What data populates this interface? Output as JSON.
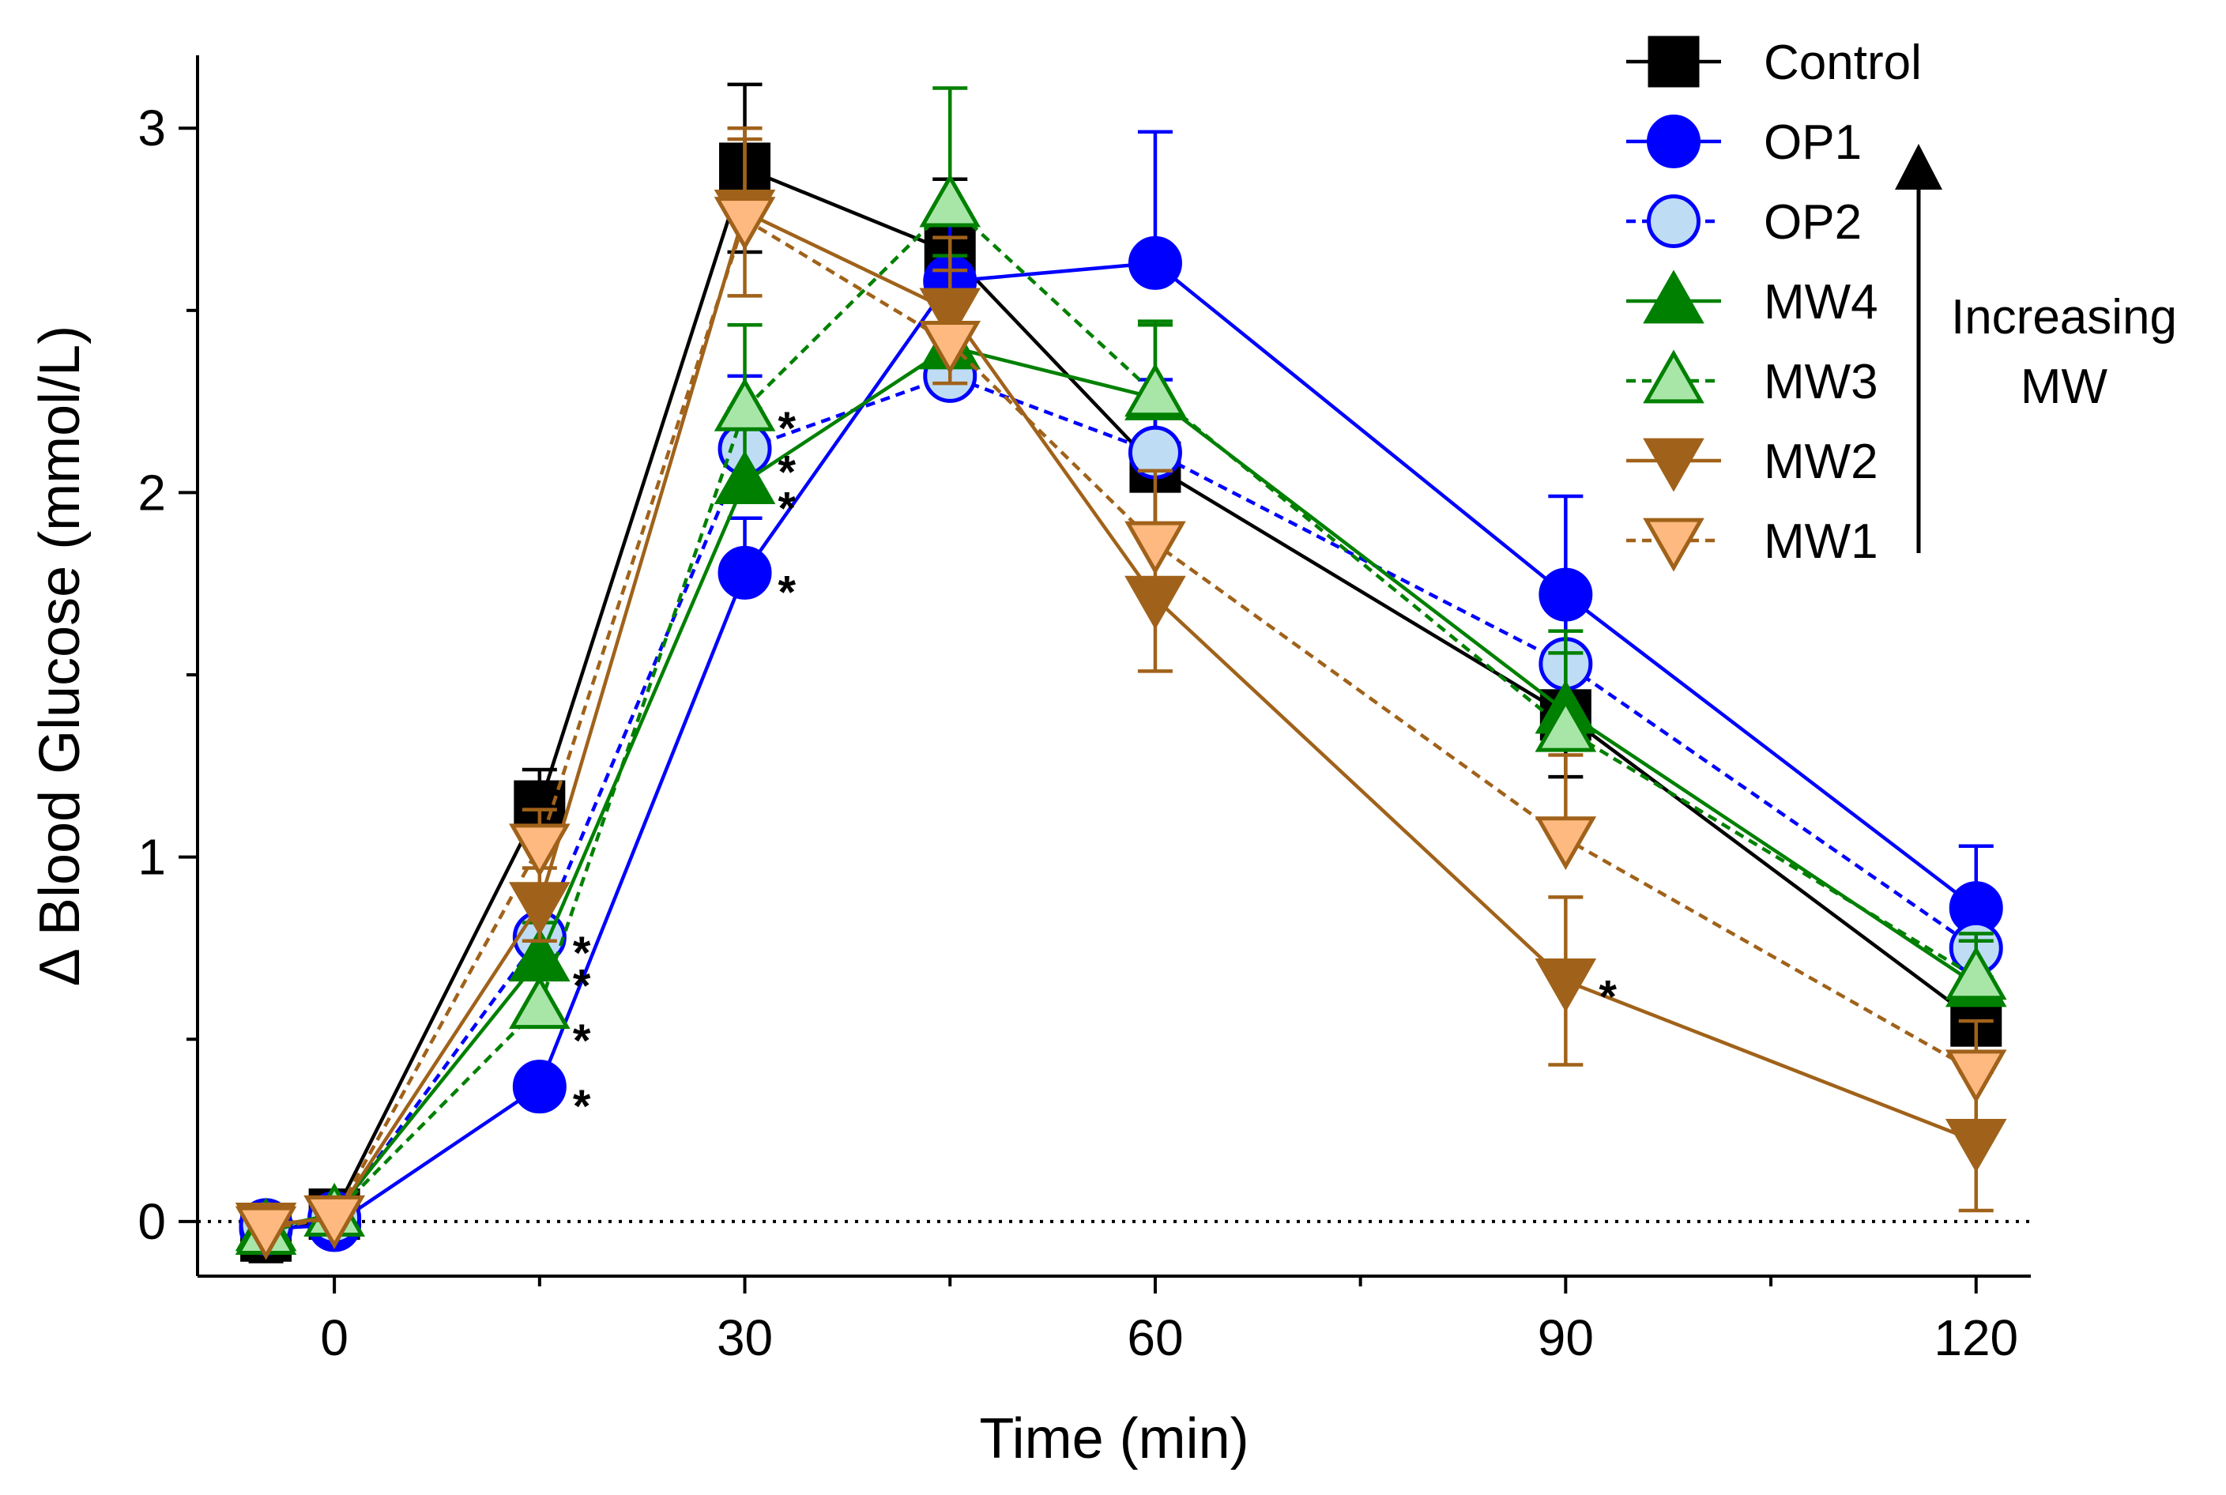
{
  "chart_data": {
    "type": "line",
    "xlabel": "Time (min)",
    "ylabel": "Δ Blood Glucose (mmol/L)",
    "xlim": [
      -10,
      124
    ],
    "ylim": [
      -0.15,
      3.2
    ],
    "xticks": [
      {
        "value": 0,
        "label": "0"
      },
      {
        "value": 30,
        "label": "30"
      },
      {
        "value": 60,
        "label": "60"
      },
      {
        "value": 90,
        "label": "90"
      },
      {
        "value": 120,
        "label": "120"
      }
    ],
    "xminor": [
      15,
      45,
      75,
      105
    ],
    "yticks": [
      {
        "value": 0,
        "label": "0"
      },
      {
        "value": 1,
        "label": "1"
      },
      {
        "value": 2,
        "label": "2"
      },
      {
        "value": 3,
        "label": "3"
      }
    ],
    "yminor": [
      0.5,
      1.5,
      2.5
    ],
    "baseline": 0,
    "series": [
      {
        "name": "Control",
        "color": "#000000",
        "fill": "#000000",
        "marker": "square",
        "dash": "solid",
        "x": [
          -5,
          0,
          15,
          30,
          45,
          60,
          90,
          120
        ],
        "y": [
          -0.04,
          0.02,
          1.14,
          2.89,
          2.66,
          2.07,
          1.39,
          0.55
        ],
        "err": [
          0.07,
          0.04,
          0.1,
          0.23,
          0.2,
          0.18,
          0.17,
          0.12
        ]
      },
      {
        "name": "OP1",
        "color": "#0000FF",
        "fill": "#0000FF",
        "marker": "circle",
        "dash": "solid",
        "x": [
          -5,
          0,
          15,
          30,
          45,
          60,
          90,
          120
        ],
        "y": [
          -0.02,
          -0.01,
          0.37,
          1.78,
          2.58,
          2.63,
          1.72,
          0.86
        ],
        "err": [
          0.05,
          0.04,
          0.06,
          0.15,
          0.2,
          0.36,
          0.27,
          0.17
        ]
      },
      {
        "name": "OP2",
        "color": "#0000FF",
        "fill": "#BFDCF5",
        "marker": "circle",
        "dash": "dashed",
        "x": [
          -5,
          0,
          15,
          30,
          45,
          60,
          90,
          120
        ],
        "y": [
          -0.01,
          0.01,
          0.78,
          2.12,
          2.32,
          2.11,
          1.53,
          0.75
        ],
        "err": [
          0.05,
          0.04,
          0.1,
          0.2,
          0.25,
          0.2,
          0.22,
          0.14
        ]
      },
      {
        "name": "MW4",
        "color": "#008000",
        "fill": "#008000",
        "marker": "triangle-up",
        "dash": "solid",
        "x": [
          -5,
          0,
          15,
          30,
          45,
          60,
          90,
          120
        ],
        "y": [
          -0.02,
          0.02,
          0.72,
          2.03,
          2.4,
          2.26,
          1.4,
          0.65
        ],
        "err": [
          0.05,
          0.04,
          0.1,
          0.2,
          0.25,
          0.2,
          0.22,
          0.12
        ]
      },
      {
        "name": "MW3",
        "color": "#008000",
        "fill": "#A8E6A8",
        "marker": "triangle-up",
        "dash": "dashed",
        "x": [
          -5,
          0,
          15,
          30,
          45,
          60,
          90,
          120
        ],
        "y": [
          -0.03,
          0.02,
          0.59,
          2.23,
          2.79,
          2.27,
          1.35,
          0.67
        ],
        "err": [
          0.05,
          0.04,
          0.1,
          0.23,
          0.32,
          0.2,
          0.21,
          0.12
        ]
      },
      {
        "name": "MW2",
        "color": "#A0621A",
        "fill": "#A0621A",
        "marker": "triangle-down",
        "dash": "solid",
        "x": [
          -5,
          0,
          15,
          30,
          45,
          60,
          90,
          120
        ],
        "y": [
          -0.01,
          0.01,
          0.87,
          2.77,
          2.5,
          1.71,
          0.66,
          0.22
        ],
        "err": [
          0.05,
          0.04,
          0.1,
          0.23,
          0.2,
          0.2,
          0.23,
          0.19
        ]
      },
      {
        "name": "MW1",
        "color": "#A0621A",
        "fill": "#FDB97F",
        "marker": "triangle-down",
        "dash": "dashed",
        "x": [
          -5,
          0,
          15,
          30,
          45,
          60,
          90,
          120
        ],
        "y": [
          -0.02,
          0.01,
          1.03,
          2.75,
          2.41,
          1.86,
          1.05,
          0.41
        ],
        "err": [
          0.05,
          0.04,
          0.1,
          0.22,
          0.2,
          0.2,
          0.23,
          0.14
        ]
      }
    ],
    "significance": [
      {
        "x": 15,
        "y": 0.78,
        "text": "*"
      },
      {
        "x": 15,
        "y": 0.69,
        "text": "*"
      },
      {
        "x": 15,
        "y": 0.54,
        "text": "*"
      },
      {
        "x": 15,
        "y": 0.36,
        "text": "*"
      },
      {
        "x": 30,
        "y": 2.22,
        "text": "*"
      },
      {
        "x": 30,
        "y": 2.1,
        "text": "*"
      },
      {
        "x": 30,
        "y": 2.0,
        "text": "*"
      },
      {
        "x": 30,
        "y": 1.77,
        "text": "*"
      },
      {
        "x": 90,
        "y": 0.66,
        "text": "*"
      }
    ],
    "legend_position": "top-right",
    "legend_annotation": "Increasing MW"
  }
}
